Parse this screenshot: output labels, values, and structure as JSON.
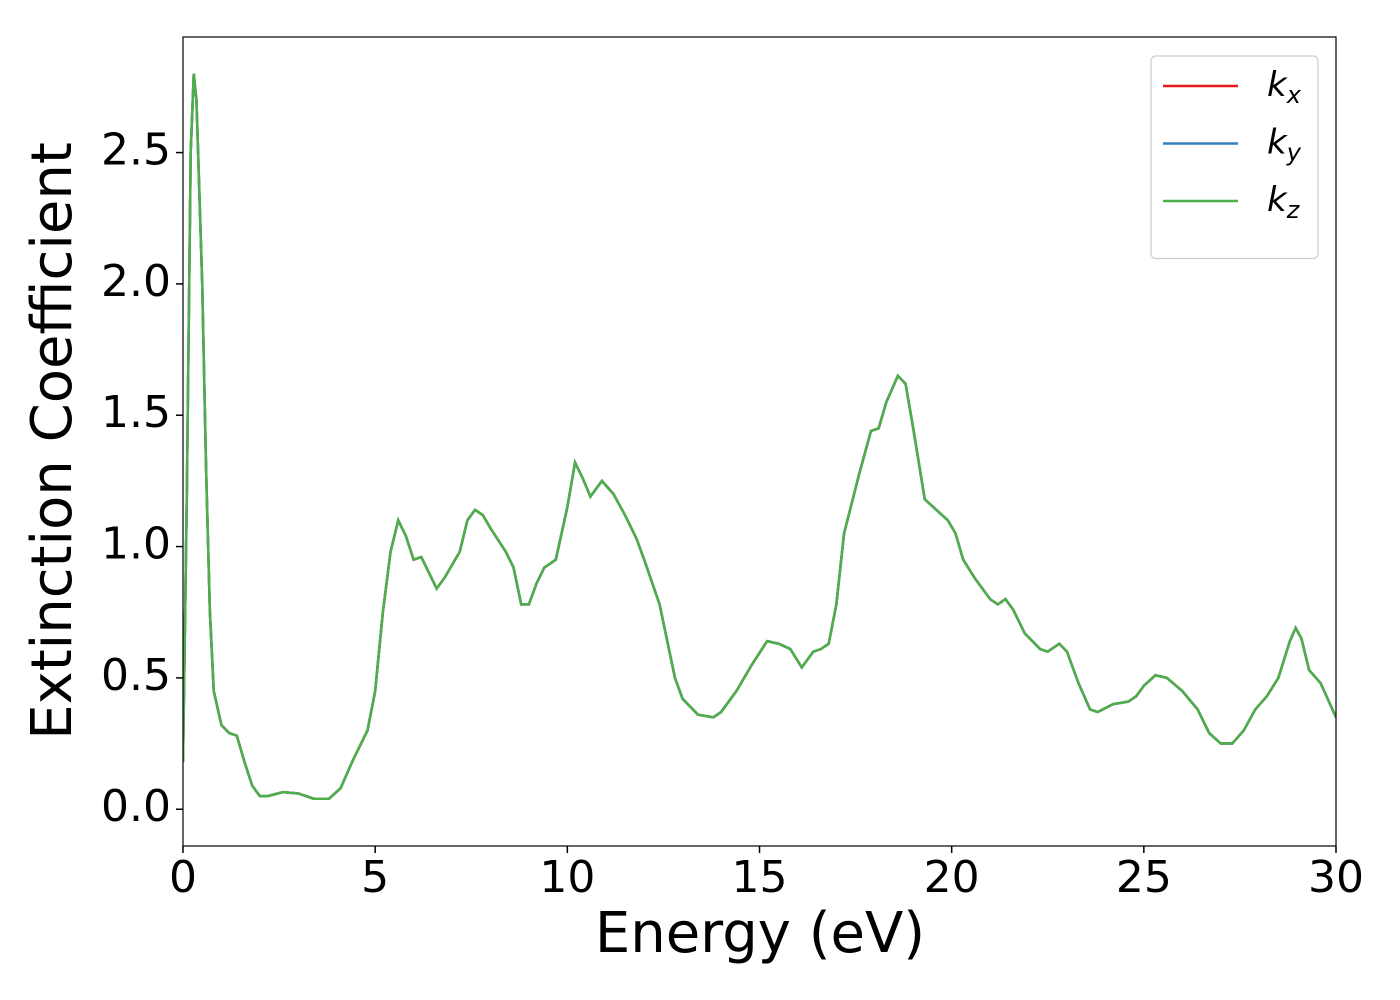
{
  "chart_data": {
    "type": "line",
    "xlabel": "Energy (eV)",
    "ylabel": "Extinction Coefficient",
    "xlim": [
      0,
      30
    ],
    "ylim": [
      -0.14,
      2.94
    ],
    "xticks": [
      0,
      5,
      10,
      15,
      20,
      25,
      30
    ],
    "yticks": [
      {
        "value": 0,
        "label": "0.0"
      },
      0.5,
      {
        "value": 1,
        "label": "1.0"
      },
      1.5,
      {
        "value": 2,
        "label": "2.0"
      },
      2.5
    ],
    "grid": false,
    "legend": "upper right",
    "x": [
      0,
      0.1,
      0.2,
      0.28,
      0.35,
      0.5,
      0.6,
      0.7,
      0.8,
      1.0,
      1.2,
      1.4,
      1.6,
      1.8,
      2.0,
      2.2,
      2.6,
      3.0,
      3.4,
      3.8,
      4.1,
      4.4,
      4.8,
      5.0,
      5.2,
      5.4,
      5.6,
      5.8,
      6.0,
      6.2,
      6.4,
      6.6,
      6.8,
      7.0,
      7.2,
      7.4,
      7.6,
      7.8,
      8.0,
      8.4,
      8.6,
      8.8,
      9.0,
      9.2,
      9.4,
      9.7,
      10.0,
      10.2,
      10.4,
      10.6,
      10.9,
      11.2,
      11.5,
      11.8,
      12.0,
      12.4,
      12.8,
      13.0,
      13.4,
      13.8,
      14.0,
      14.4,
      14.8,
      15.2,
      15.5,
      15.8,
      16.1,
      16.4,
      16.6,
      16.8,
      17.0,
      17.2,
      17.6,
      17.9,
      18.1,
      18.3,
      18.6,
      18.8,
      19.0,
      19.3,
      19.6,
      19.9,
      20.1,
      20.3,
      20.6,
      21.0,
      21.2,
      21.4,
      21.6,
      21.9,
      22.3,
      22.5,
      22.8,
      23.0,
      23.3,
      23.6,
      23.8,
      24.2,
      24.6,
      24.8,
      25.0,
      25.3,
      25.6,
      26.0,
      26.4,
      26.7,
      27.0,
      27.3,
      27.6,
      27.9,
      28.2,
      28.5,
      28.8,
      28.95,
      29.1,
      29.3,
      29.6,
      30.0
    ],
    "series": [
      {
        "name": "kx",
        "color": "#e41a1c",
        "values": [
          0.18,
          1.2,
          2.5,
          2.8,
          2.7,
          2.0,
          1.3,
          0.75,
          0.45,
          0.32,
          0.29,
          0.28,
          0.18,
          0.09,
          0.05,
          0.05,
          0.065,
          0.06,
          0.04,
          0.04,
          0.08,
          0.18,
          0.3,
          0.45,
          0.75,
          0.98,
          1.1,
          1.04,
          0.95,
          0.96,
          0.9,
          0.84,
          0.88,
          0.93,
          0.98,
          1.1,
          1.14,
          1.12,
          1.07,
          0.98,
          0.92,
          0.78,
          0.78,
          0.86,
          0.92,
          0.95,
          1.15,
          1.32,
          1.26,
          1.19,
          1.25,
          1.2,
          1.12,
          1.03,
          0.95,
          0.78,
          0.5,
          0.42,
          0.36,
          0.35,
          0.37,
          0.45,
          0.55,
          0.64,
          0.63,
          0.61,
          0.54,
          0.6,
          0.61,
          0.63,
          0.78,
          1.05,
          1.28,
          1.44,
          1.45,
          1.55,
          1.65,
          1.62,
          1.45,
          1.18,
          1.14,
          1.1,
          1.05,
          0.95,
          0.88,
          0.8,
          0.78,
          0.8,
          0.76,
          0.67,
          0.61,
          0.6,
          0.63,
          0.6,
          0.48,
          0.38,
          0.37,
          0.4,
          0.41,
          0.43,
          0.47,
          0.51,
          0.5,
          0.45,
          0.38,
          0.29,
          0.25,
          0.25,
          0.3,
          0.38,
          0.43,
          0.5,
          0.64,
          0.69,
          0.65,
          0.53,
          0.48,
          0.35
        ]
      },
      {
        "name": "ky",
        "color": "#377eb8",
        "values": [
          0.18,
          1.2,
          2.5,
          2.8,
          2.7,
          2.0,
          1.3,
          0.75,
          0.45,
          0.32,
          0.29,
          0.28,
          0.18,
          0.09,
          0.05,
          0.05,
          0.065,
          0.06,
          0.04,
          0.04,
          0.08,
          0.18,
          0.3,
          0.45,
          0.75,
          0.98,
          1.1,
          1.04,
          0.95,
          0.96,
          0.9,
          0.84,
          0.88,
          0.93,
          0.98,
          1.1,
          1.14,
          1.12,
          1.07,
          0.98,
          0.92,
          0.78,
          0.78,
          0.86,
          0.92,
          0.95,
          1.15,
          1.32,
          1.26,
          1.19,
          1.25,
          1.2,
          1.12,
          1.03,
          0.95,
          0.78,
          0.5,
          0.42,
          0.36,
          0.35,
          0.37,
          0.45,
          0.55,
          0.64,
          0.63,
          0.61,
          0.54,
          0.6,
          0.61,
          0.63,
          0.78,
          1.05,
          1.28,
          1.44,
          1.45,
          1.55,
          1.65,
          1.62,
          1.45,
          1.18,
          1.14,
          1.1,
          1.05,
          0.95,
          0.88,
          0.8,
          0.78,
          0.8,
          0.76,
          0.67,
          0.61,
          0.6,
          0.63,
          0.6,
          0.48,
          0.38,
          0.37,
          0.4,
          0.41,
          0.43,
          0.47,
          0.51,
          0.5,
          0.45,
          0.38,
          0.29,
          0.25,
          0.25,
          0.3,
          0.38,
          0.43,
          0.5,
          0.64,
          0.69,
          0.65,
          0.53,
          0.48,
          0.35
        ]
      },
      {
        "name": "kz",
        "color": "#4daf4a",
        "values": [
          0.18,
          1.2,
          2.5,
          2.8,
          2.7,
          2.0,
          1.3,
          0.75,
          0.45,
          0.32,
          0.29,
          0.28,
          0.18,
          0.09,
          0.05,
          0.05,
          0.065,
          0.06,
          0.04,
          0.04,
          0.08,
          0.18,
          0.3,
          0.45,
          0.75,
          0.98,
          1.1,
          1.04,
          0.95,
          0.96,
          0.9,
          0.84,
          0.88,
          0.93,
          0.98,
          1.1,
          1.14,
          1.12,
          1.07,
          0.98,
          0.92,
          0.78,
          0.78,
          0.86,
          0.92,
          0.95,
          1.15,
          1.32,
          1.26,
          1.19,
          1.25,
          1.2,
          1.12,
          1.03,
          0.95,
          0.78,
          0.5,
          0.42,
          0.36,
          0.35,
          0.37,
          0.45,
          0.55,
          0.64,
          0.63,
          0.61,
          0.54,
          0.6,
          0.61,
          0.63,
          0.78,
          1.05,
          1.28,
          1.44,
          1.45,
          1.55,
          1.65,
          1.62,
          1.45,
          1.18,
          1.14,
          1.1,
          1.05,
          0.95,
          0.88,
          0.8,
          0.78,
          0.8,
          0.76,
          0.67,
          0.61,
          0.6,
          0.63,
          0.6,
          0.48,
          0.38,
          0.37,
          0.4,
          0.41,
          0.43,
          0.47,
          0.51,
          0.5,
          0.45,
          0.38,
          0.29,
          0.25,
          0.25,
          0.3,
          0.38,
          0.43,
          0.5,
          0.64,
          0.69,
          0.65,
          0.53,
          0.48,
          0.35
        ]
      }
    ]
  }
}
